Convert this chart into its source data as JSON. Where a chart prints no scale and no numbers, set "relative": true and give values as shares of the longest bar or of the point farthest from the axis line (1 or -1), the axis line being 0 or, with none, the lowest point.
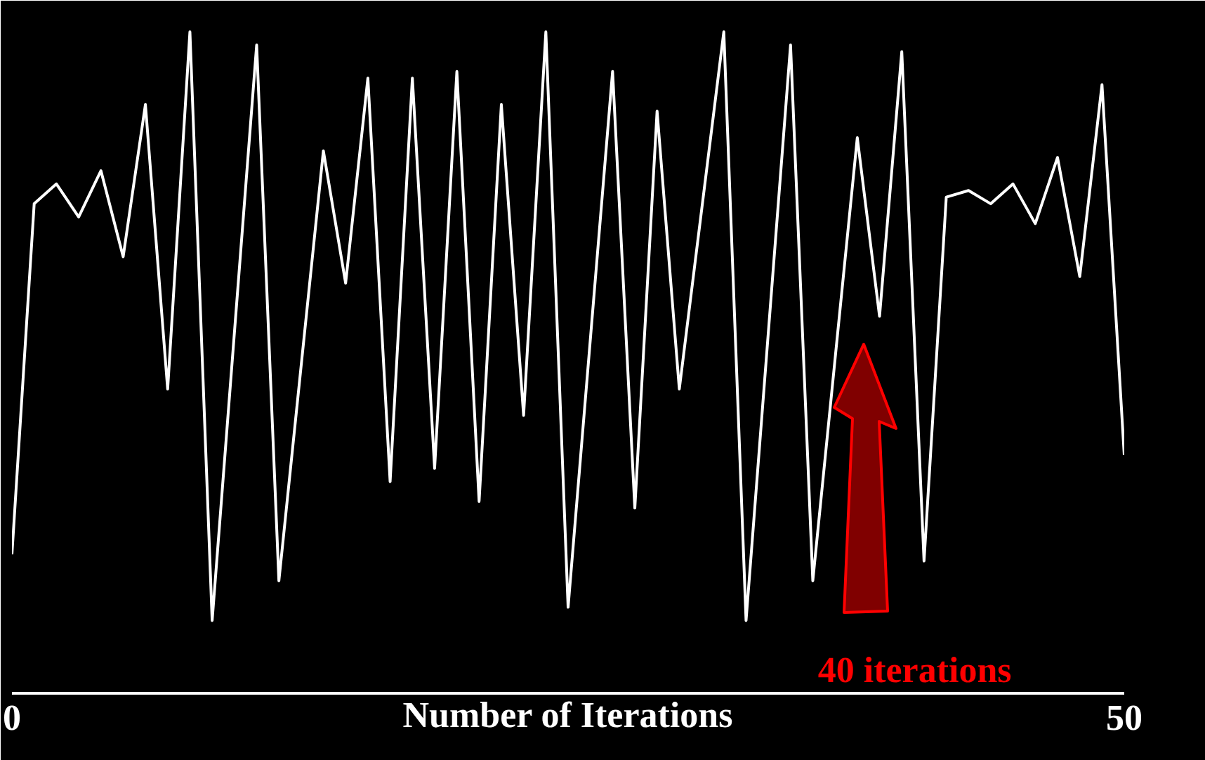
{
  "chart_data": {
    "type": "line",
    "relative": true,
    "xlabel": "Number of Iterations",
    "xlim": [
      0,
      50
    ],
    "xticks": [
      0,
      50
    ],
    "grid": false,
    "marker": "none",
    "line_style": "solid",
    "series": [
      {
        "color": "#ffffff",
        "x": [
          0,
          1,
          2,
          3,
          4,
          5,
          6,
          7,
          8,
          9,
          11,
          12,
          14,
          15,
          16,
          17,
          18,
          19,
          20,
          21,
          22,
          23,
          24,
          25,
          27,
          28,
          29,
          30,
          32,
          33,
          35,
          36,
          38,
          39,
          40,
          41,
          42,
          43,
          44,
          45,
          46,
          47,
          48,
          49,
          50
        ],
        "values": [
          0.21,
          0.74,
          0.77,
          0.72,
          0.79,
          0.66,
          0.89,
          0.46,
          1.0,
          0.11,
          0.98,
          0.17,
          0.82,
          0.62,
          0.93,
          0.32,
          0.93,
          0.34,
          0.94,
          0.29,
          0.89,
          0.42,
          1.0,
          0.13,
          0.94,
          0.28,
          0.88,
          0.46,
          1.0,
          0.11,
          0.98,
          0.17,
          0.84,
          0.57,
          0.97,
          0.2,
          0.75,
          0.76,
          0.74,
          0.77,
          0.71,
          0.81,
          0.63,
          0.92,
          0.36
        ]
      }
    ],
    "annotations": [
      "40 iterations"
    ]
  }
}
